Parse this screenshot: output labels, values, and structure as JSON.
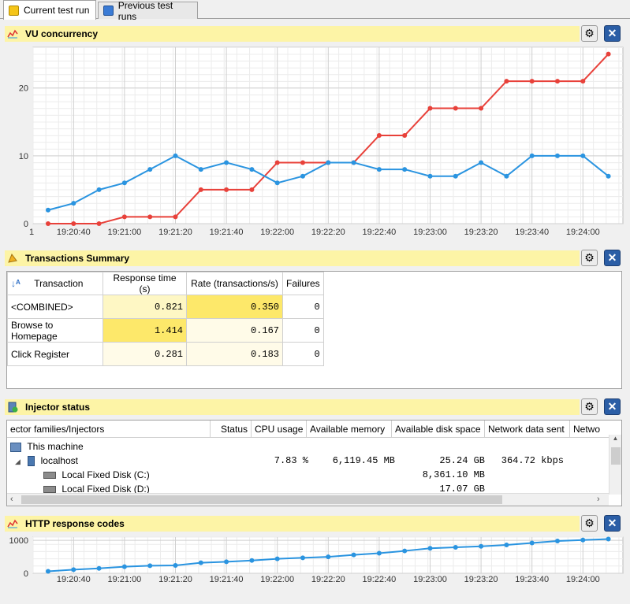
{
  "tabs": [
    {
      "label": "Current test run",
      "icon": "yellow-cube-icon"
    },
    {
      "label": "Previous test runs",
      "icon": "blue-cube-icon"
    }
  ],
  "panels": {
    "vu": {
      "title": "VU concurrency"
    },
    "transactions": {
      "title": "Transactions Summary"
    },
    "injector": {
      "title": "Injector status"
    },
    "http": {
      "title": "HTTP response codes"
    }
  },
  "chart_data": [
    {
      "type": "line",
      "title": "VU concurrency",
      "x": [
        "19:20:30",
        "19:20:40",
        "19:20:50",
        "19:21:00",
        "19:21:10",
        "19:21:20",
        "19:21:30",
        "19:21:40",
        "19:21:50",
        "19:22:00",
        "19:22:10",
        "19:22:20",
        "19:22:30",
        "19:22:40",
        "19:22:50",
        "19:23:00",
        "19:23:10",
        "19:23:20",
        "19:23:30",
        "19:23:40",
        "19:23:50",
        "19:24:00",
        "19:24:10"
      ],
      "x_tick_labels": [
        "19:20:40",
        "19:21:00",
        "19:21:20",
        "19:21:40",
        "19:22:00",
        "19:22:20",
        "19:22:40",
        "19:23:00",
        "19:23:20",
        "19:23:40",
        "19:24:00"
      ],
      "x_axis_start_label": "1",
      "y_ticks": [
        0,
        10,
        20
      ],
      "ylim": [
        0,
        26
      ],
      "grid": true,
      "series": [
        {
          "color": "#e8413a",
          "values": [
            0,
            0,
            0,
            1,
            1,
            1,
            5,
            5,
            5,
            9,
            9,
            9,
            9,
            13,
            13,
            17,
            17,
            17,
            21,
            21,
            21,
            21,
            25
          ]
        },
        {
          "color": "#2a94e0",
          "values": [
            2,
            3,
            5,
            6,
            8,
            10,
            8,
            9,
            8,
            6,
            7,
            9,
            9,
            8,
            8,
            7,
            7,
            9,
            7,
            10,
            10,
            10,
            7
          ]
        }
      ]
    },
    {
      "type": "line",
      "title": "HTTP response codes",
      "x": [
        "19:20:30",
        "19:20:40",
        "19:20:50",
        "19:21:00",
        "19:21:10",
        "19:21:20",
        "19:21:30",
        "19:21:40",
        "19:21:50",
        "19:22:00",
        "19:22:10",
        "19:22:20",
        "19:22:30",
        "19:22:40",
        "19:22:50",
        "19:23:00",
        "19:23:10",
        "19:23:20",
        "19:23:30",
        "19:23:40",
        "19:23:50",
        "19:24:00",
        "19:24:10"
      ],
      "x_tick_labels": [
        "19:20:40",
        "19:21:00",
        "19:21:20",
        "19:21:40",
        "19:22:00",
        "19:22:20",
        "19:22:40",
        "19:23:00",
        "19:23:20",
        "19:23:40",
        "19:24:00"
      ],
      "y_ticks": [
        0,
        1000
      ],
      "ylim": [
        0,
        1100
      ],
      "grid": true,
      "series": [
        {
          "color": "#2a94e0",
          "values": [
            60,
            110,
            150,
            200,
            230,
            240,
            320,
            350,
            390,
            440,
            470,
            500,
            560,
            610,
            680,
            760,
            790,
            820,
            860,
            920,
            980,
            1010,
            1040
          ]
        }
      ]
    }
  ],
  "transactions": {
    "columns": [
      "Transaction",
      "Response time (s)",
      "Rate (transactions/s)",
      "Failures"
    ],
    "rows": [
      {
        "name": "<COMBINED>",
        "response": "0.821",
        "rate": "0.350",
        "failures": "0",
        "resp_bg": "#fef7c4",
        "rate_bg": "#fde86a"
      },
      {
        "name": "Browse to Homepage",
        "response": "1.414",
        "rate": "0.167",
        "failures": "0",
        "resp_bg": "#fde86a",
        "rate_bg": "#fffbe8"
      },
      {
        "name": "Click Register",
        "response": "0.281",
        "rate": "0.183",
        "failures": "0",
        "resp_bg": "#fffbe8",
        "rate_bg": "#fffbe8"
      }
    ]
  },
  "injector": {
    "columns": [
      "ector families/Injectors",
      "Status",
      "CPU usage",
      "Available memory",
      "Available disk space",
      "Network data sent",
      "Netwo"
    ],
    "tree": [
      {
        "label": "This machine",
        "cpu": "",
        "memory": "",
        "disk": "",
        "net": ""
      },
      {
        "label": "localhost",
        "cpu": "7.83 %",
        "memory": "6,119.45 MB",
        "disk": "25.24 GB",
        "net": "364.72 kbps"
      },
      {
        "label": "Local Fixed Disk (C:)",
        "cpu": "",
        "memory": "",
        "disk": "8,361.10 MB",
        "net": ""
      },
      {
        "label": "Local Fixed Disk (D:)",
        "cpu": "",
        "memory": "",
        "disk": "17.07 GB",
        "net": ""
      }
    ]
  }
}
